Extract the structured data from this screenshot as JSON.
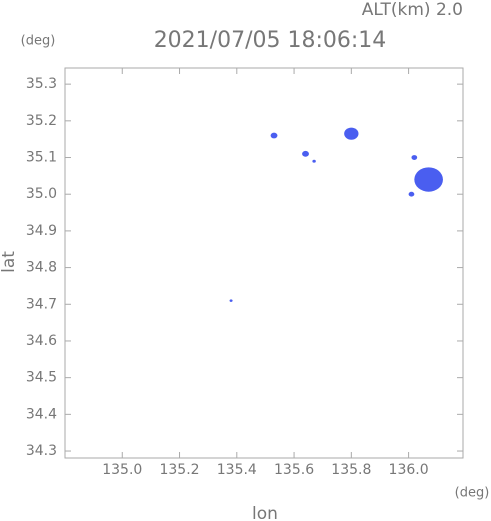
{
  "chart_data": {
    "type": "scatter",
    "title": "2021/07/05 18:06:14",
    "subtitle": "ALT(km)  2.0",
    "y_unit": "(deg)",
    "x_unit": "(deg)",
    "xlabel": "lon",
    "ylabel": "lat",
    "xlim": [
      134.8,
      136.19
    ],
    "ylim": [
      34.281,
      35.344
    ],
    "xticks": [
      {
        "value": 135.0,
        "label": "135.0"
      },
      135.2,
      135.4,
      135.6,
      135.8,
      {
        "value": 136.0,
        "label": "136.0"
      }
    ],
    "yticks": [
      34.3,
      34.4,
      34.5,
      34.6,
      34.7,
      34.8,
      34.9,
      {
        "value": 35.0,
        "label": "35.0"
      },
      35.1,
      35.2,
      35.3
    ],
    "color": "#4a5ef0",
    "x": [
      135.53,
      135.64,
      135.67,
      135.8,
      136.07,
      136.02,
      136.01,
      135.38
    ],
    "y": [
      35.16,
      35.11,
      35.09,
      35.165,
      35.04,
      35.1,
      35.0,
      34.71
    ],
    "sizes": [
      0.012,
      0.012,
      0.006,
      0.025,
      0.05,
      0.01,
      0.01,
      0.004
    ]
  }
}
